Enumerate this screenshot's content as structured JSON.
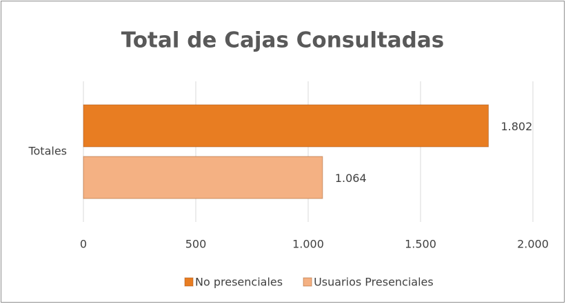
{
  "chart_data": {
    "type": "hbar",
    "title": "Total de Cajas Consultadas",
    "categories": [
      "Totales"
    ],
    "series": [
      {
        "name": "No presenciales",
        "color": "#e87d22",
        "values": [
          1802
        ],
        "value_labels": [
          "1.802"
        ]
      },
      {
        "name": "Usuarios Presenciales",
        "color": "#f4b183",
        "values": [
          1064
        ],
        "value_labels": [
          "1.064"
        ]
      }
    ],
    "xlim": [
      0,
      2000
    ],
    "xticks": [
      0,
      500,
      {
        "value": 1000,
        "label": "1.000"
      },
      {
        "value": 1500,
        "label": "1.500"
      },
      {
        "value": 2000,
        "label": "2.000"
      }
    ],
    "grid": true,
    "legend": "bottom"
  }
}
